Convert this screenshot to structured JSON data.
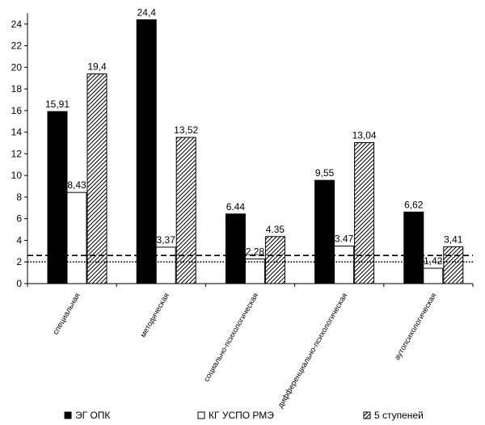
{
  "chart_data": {
    "type": "bar",
    "categories": [
      "специальная",
      "методическая",
      "социально-психологическая",
      "дифференциально-психологическая",
      "аутопсихологическая"
    ],
    "series": [
      {
        "name": "ЭГ ОПК",
        "values": [
          15.91,
          24.4,
          6.44,
          9.55,
          6.62
        ],
        "labels": [
          "15,91",
          "24,4",
          "6.44",
          "9,55",
          "6,62"
        ],
        "fill": "solid-black"
      },
      {
        "name": "КГ УСПО РМЭ",
        "values": [
          8.43,
          3.37,
          2.28,
          3.47,
          1.42
        ],
        "labels": [
          "8,43",
          "3,37",
          "2,28",
          "3.47",
          "1,42"
        ],
        "fill": "white"
      },
      {
        "name": "5 ступеней",
        "values": [
          19.4,
          13.52,
          4.35,
          13.04,
          3.41
        ],
        "labels": [
          "19,4",
          "13,52",
          "4.35",
          "13,04",
          "3,41"
        ],
        "fill": "diagonal-hatch"
      }
    ],
    "reference_lines": [
      {
        "value": 2.6,
        "style": "dashed"
      },
      {
        "value": 2.0,
        "style": "dotted"
      }
    ],
    "ylim": [
      0,
      25
    ],
    "yticks": [
      "0",
      "2",
      "4",
      "6",
      "8",
      "10",
      "12",
      "14",
      "16",
      "18",
      "20",
      "22",
      "24"
    ],
    "grid": false,
    "legend_position": "bottom",
    "title": "",
    "xlabel": "",
    "ylabel": ""
  }
}
